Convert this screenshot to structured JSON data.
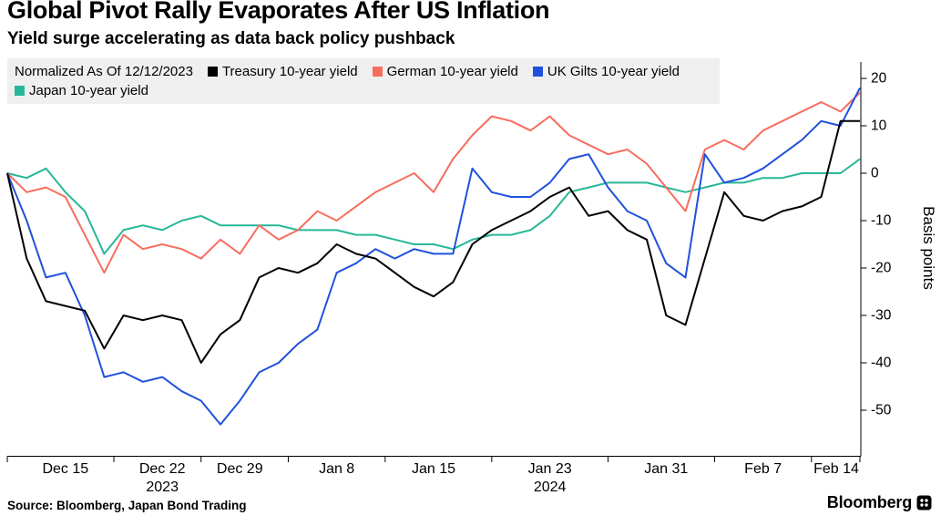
{
  "header": {
    "title": "Global Pivot Rally Evaporates After US Inflation",
    "subtitle": "Yield surge accelerating as data back policy pushback"
  },
  "legend": {
    "note": "Normalized As Of 12/12/2023"
  },
  "chart_data": {
    "type": "line",
    "title": "Global Pivot Rally Evaporates After US Inflation",
    "subtitle": "Yield surge accelerating as data back policy pushback",
    "ylabel": "Basis points",
    "xlabel": "",
    "grid": false,
    "legend_position": "top",
    "ylim": [
      -59,
      23
    ],
    "y_ticks": [
      20,
      10,
      0,
      -10,
      -20,
      -30,
      -40,
      -50
    ],
    "x_dates": [
      "12/12",
      "12/13",
      "12/14",
      "12/15",
      "12/18",
      "12/19",
      "12/20",
      "12/21",
      "12/22",
      "12/26",
      "12/27",
      "12/28",
      "12/29",
      "1/2",
      "1/3",
      "1/4",
      "1/5",
      "1/8",
      "1/9",
      "1/10",
      "1/11",
      "1/12",
      "1/15",
      "1/16",
      "1/17",
      "1/18",
      "1/19",
      "1/22",
      "1/23",
      "1/24",
      "1/25",
      "1/26",
      "1/29",
      "1/30",
      "1/31",
      "2/1",
      "2/2",
      "2/5",
      "2/6",
      "2/7",
      "2/8",
      "2/9",
      "2/12",
      "2/13",
      "2/14"
    ],
    "x_tick_labels": [
      {
        "label": "Dec 15",
        "index": 3
      },
      {
        "label": "Dec 22",
        "index": 8,
        "year": "2023"
      },
      {
        "label": "Dec 29",
        "index": 12
      },
      {
        "label": "Jan 8",
        "index": 17
      },
      {
        "label": "Jan 15",
        "index": 22
      },
      {
        "label": "Jan 23",
        "index": 28,
        "year": "2024"
      },
      {
        "label": "Jan 31",
        "index": 34
      },
      {
        "label": "Feb 7",
        "index": 39
      },
      {
        "label": "Feb 14",
        "index": 44
      }
    ],
    "series": [
      {
        "name": "Treasury 10-year yield",
        "color": "#000000",
        "values": [
          0,
          -18,
          -27,
          -28,
          -29,
          -37,
          -30,
          -31,
          -30,
          -31,
          -40,
          -34,
          -31,
          -22,
          -20,
          -21,
          -19,
          -15,
          -17,
          -18,
          -21,
          -24,
          -26,
          -23,
          -15,
          -12,
          -10,
          -8,
          -5,
          -3,
          -9,
          -8,
          -12,
          -14,
          -30,
          -32,
          -18,
          -4,
          -9,
          -10,
          -8,
          -7,
          -5,
          11,
          11
        ]
      },
      {
        "name": "German 10-year yield",
        "color": "#F76D5E",
        "values": [
          0,
          -4,
          -3,
          -5,
          -13,
          -21,
          -13,
          -16,
          -15,
          -16,
          -18,
          -14,
          -17,
          -11,
          -14,
          -12,
          -8,
          -10,
          -7,
          -4,
          -2,
          0,
          -4,
          3,
          8,
          12,
          11,
          9,
          12,
          8,
          6,
          4,
          5,
          2,
          -3,
          -8,
          5,
          7,
          5,
          9,
          11,
          13,
          15,
          13,
          17
        ]
      },
      {
        "name": "UK Gilts 10-year yield",
        "color": "#2051DC",
        "values": [
          0,
          -10,
          -22,
          -21,
          -30,
          -43,
          -42,
          -44,
          -43,
          -46,
          -48,
          -53,
          -48,
          -42,
          -40,
          -36,
          -33,
          -21,
          -19,
          -16,
          -18,
          -16,
          -17,
          -17,
          1,
          -4,
          -5,
          -5,
          -2,
          3,
          4,
          -3,
          -8,
          -10,
          -19,
          -22,
          4,
          -2,
          -1,
          1,
          4,
          7,
          11,
          10,
          18
        ]
      },
      {
        "name": "Japan 10-year yield",
        "color": "#27B798",
        "values": [
          0,
          -1,
          1,
          -4,
          -8,
          -17,
          -12,
          -11,
          -12,
          -10,
          -9,
          -11,
          -11,
          -11,
          -11,
          -12,
          -12,
          -12,
          -13,
          -13,
          -14,
          -15,
          -15,
          -16,
          -14,
          -13,
          -13,
          -12,
          -9,
          -4,
          -3,
          -2,
          -2,
          -2,
          -3,
          -4,
          -3,
          -2,
          -2,
          -1,
          -1,
          0,
          0,
          0,
          3
        ]
      }
    ]
  },
  "footer": {
    "source": "Source: Bloomberg, Japan Bond Trading",
    "brand": "Bloomberg"
  }
}
